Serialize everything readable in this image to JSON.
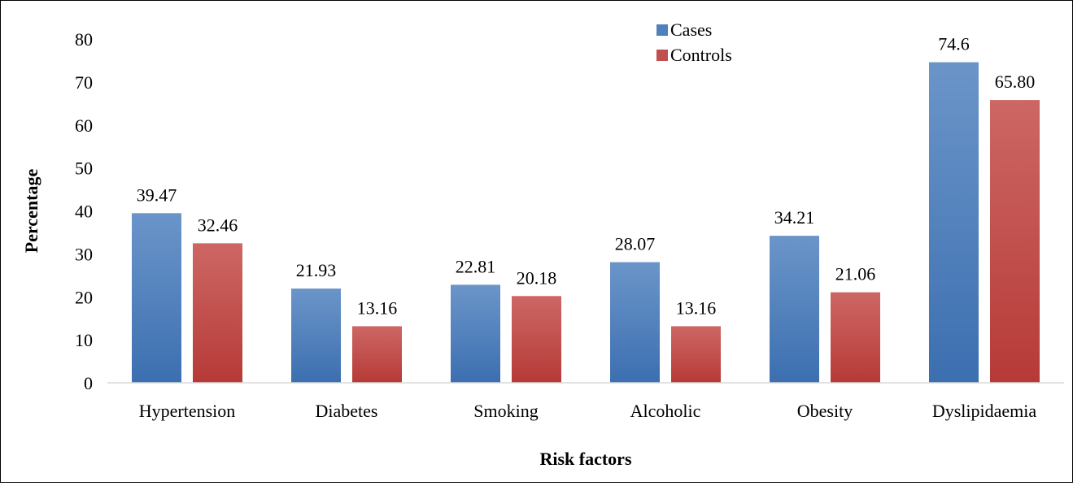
{
  "chart_data": {
    "type": "bar",
    "title": "",
    "xlabel": "Risk factors",
    "ylabel": "Percentage",
    "ylim": [
      0,
      80
    ],
    "yticks": [
      0,
      10,
      20,
      30,
      40,
      50,
      60,
      70,
      80
    ],
    "grid": false,
    "legend_position": "top-right",
    "categories": [
      "Hypertension",
      "Diabetes",
      "Smoking",
      "Alcoholic",
      "Obesity",
      "Dyslipidaemia"
    ],
    "series": [
      {
        "name": "Cases",
        "color": "#4f81bd",
        "values": [
          39.47,
          21.93,
          22.81,
          28.07,
          34.21,
          74.6
        ],
        "labels": [
          "39.47",
          "21.93",
          "22.81",
          "28.07",
          "34.21",
          "74.6"
        ]
      },
      {
        "name": "Controls",
        "color": "#c0504d",
        "values": [
          32.46,
          13.16,
          20.18,
          13.16,
          21.06,
          65.8
        ],
        "labels": [
          "32.46",
          "13.16",
          "20.18",
          "13.16",
          "21.06",
          "65.80"
        ]
      }
    ]
  }
}
